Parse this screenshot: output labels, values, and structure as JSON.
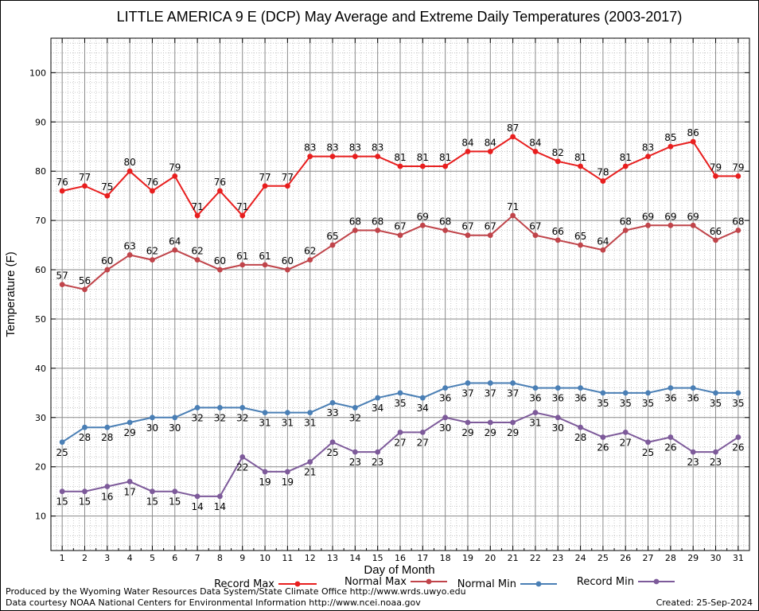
{
  "chart_data": {
    "type": "line",
    "title": "LITTLE AMERICA 9 E (DCP) May Average and Extreme Daily Temperatures (2003-2017)",
    "xlabel": "Day of Month",
    "ylabel": "Temperature (F)",
    "x": [
      1,
      2,
      3,
      4,
      5,
      6,
      7,
      8,
      9,
      10,
      11,
      12,
      13,
      14,
      15,
      16,
      17,
      18,
      19,
      20,
      21,
      22,
      23,
      24,
      25,
      26,
      27,
      28,
      29,
      30,
      31
    ],
    "xlim": [
      0.5,
      31.5
    ],
    "ylim": [
      3,
      107
    ],
    "yticks": [
      10,
      20,
      30,
      40,
      50,
      60,
      70,
      80,
      90,
      100
    ],
    "grid": true,
    "legend_position": "bottom",
    "series": [
      {
        "name": "Record Max",
        "color": "#e81e1e",
        "label_position": "above",
        "values": [
          76,
          77,
          75,
          80,
          76,
          79,
          71,
          76,
          71,
          77,
          77,
          83,
          83,
          83,
          83,
          81,
          81,
          81,
          84,
          84,
          87,
          84,
          82,
          81,
          78,
          81,
          83,
          85,
          86,
          79,
          79
        ]
      },
      {
        "name": "Normal Max",
        "color": "#c0444a",
        "label_position": "above",
        "values": [
          57,
          56,
          60,
          63,
          62,
          64,
          62,
          60,
          61,
          61,
          60,
          62,
          65,
          68,
          68,
          67,
          69,
          68,
          67,
          67,
          71,
          67,
          66,
          65,
          64,
          68,
          69,
          69,
          69,
          66,
          68
        ]
      },
      {
        "name": "Normal Min",
        "color": "#4a7fb5",
        "label_position": "below",
        "values": [
          25,
          28,
          28,
          29,
          30,
          30,
          32,
          32,
          32,
          31,
          31,
          31,
          33,
          32,
          34,
          35,
          34,
          36,
          37,
          37,
          37,
          36,
          36,
          36,
          35,
          35,
          35,
          36,
          36,
          35,
          35
        ]
      },
      {
        "name": "Record Min",
        "color": "#7d5a9a",
        "label_position": "below",
        "values": [
          15,
          15,
          16,
          17,
          15,
          15,
          14,
          14,
          22,
          19,
          19,
          21,
          25,
          23,
          23,
          27,
          27,
          30,
          29,
          29,
          29,
          31,
          30,
          28,
          26,
          27,
          25,
          26,
          23,
          23,
          26
        ]
      }
    ]
  },
  "footer": {
    "produced_by": "Produced by the Wyoming Water Resources Data System/State Climate Office http://www.wrds.uwyo.edu",
    "data_courtesy": "Data courtesy NOAA National Centers for Environmental Information http://www.ncei.noaa.gov",
    "created": "Created:  25-Sep-2024"
  }
}
